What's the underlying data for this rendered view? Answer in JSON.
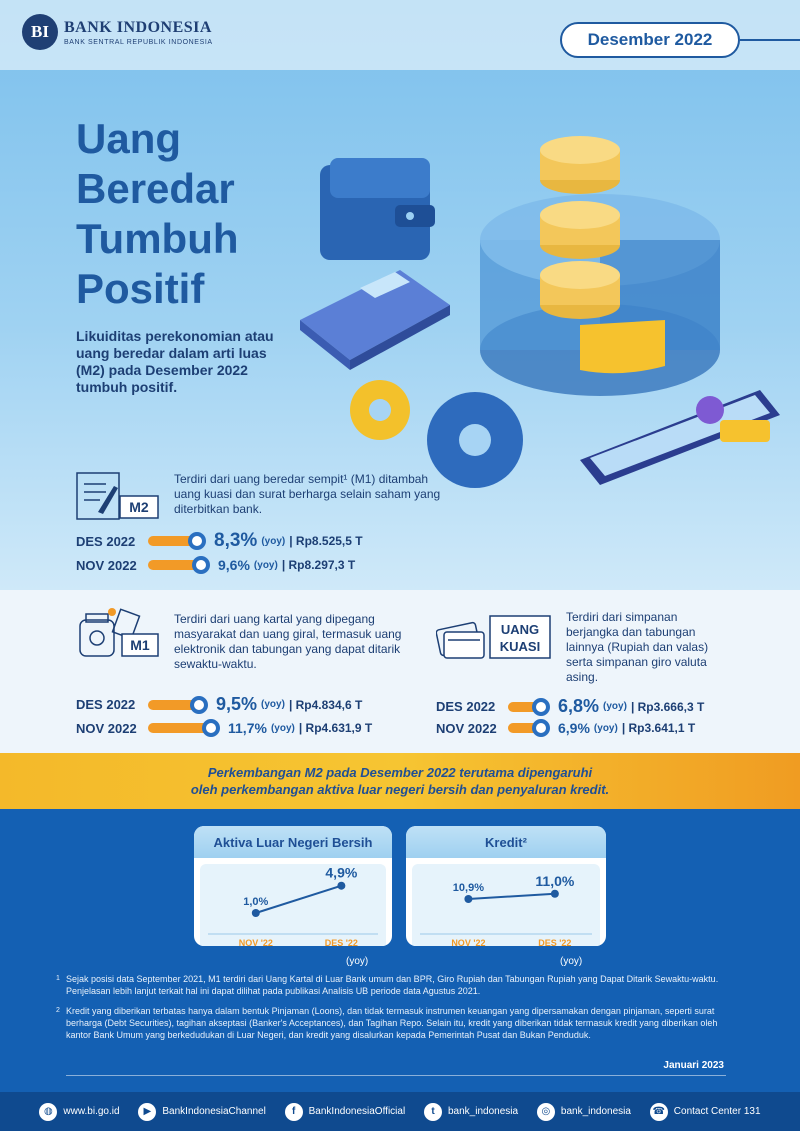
{
  "header": {
    "logo_mark": "BI",
    "logo_name": "BANK INDONESIA",
    "logo_sub": "BANK SENTRAL REPUBLIK INDONESIA",
    "period": "Desember 2022"
  },
  "hero": {
    "title_lines": [
      "Uang",
      "Beredar",
      "Tumbuh",
      "Positif"
    ],
    "intro": "Likuiditas perekonomian atau uang beredar dalam arti luas (M2) pada Desember 2022 tumbuh positif."
  },
  "m2": {
    "badge": "M2",
    "description": "Terdiri dari uang beredar sempit¹ (M1) ditambah uang kuasi dan surat berharga selain saham yang diterbitkan bank.",
    "rows": [
      {
        "label": "DES 2022",
        "pct": "8,3%",
        "yoy": "(yoy)",
        "amount": "| Rp8.525,5 T"
      },
      {
        "label": "NOV 2022",
        "pct": "9,6%",
        "yoy": "(yoy)",
        "amount": "| Rp8.297,3 T"
      }
    ]
  },
  "m1": {
    "badge": "M1",
    "description": "Terdiri dari uang kartal yang dipegang masyarakat dan uang giral, termasuk uang elektronik dan tabungan yang dapat ditarik sewaktu-waktu.",
    "rows": [
      {
        "label": "DES 2022",
        "pct": "9,5%",
        "yoy": "(yoy)",
        "amount": "| Rp4.834,6 T"
      },
      {
        "label": "NOV 2022",
        "pct": "11,7%",
        "yoy": "(yoy)",
        "amount": "| Rp4.631,9 T"
      }
    ]
  },
  "kuasi": {
    "badge_line1": "UANG",
    "badge_line2": "KUASI",
    "description": "Terdiri dari simpanan berjangka dan tabungan lainnya (Rupiah dan valas) serta simpanan giro valuta asing.",
    "rows": [
      {
        "label": "DES 2022",
        "pct": "6,8%",
        "yoy": "(yoy)",
        "amount": "| Rp3.666,3 T"
      },
      {
        "label": "NOV 2022",
        "pct": "6,9%",
        "yoy": "(yoy)",
        "amount": "| Rp3.641,1 T"
      }
    ]
  },
  "banner": {
    "line1": "Perkembangan M2 pada Desember 2022 terutama dipengaruhi",
    "line2": "oleh perkembangan aktiva luar negeri bersih dan penyaluran kredit."
  },
  "chart_data": [
    {
      "type": "line",
      "title": "Aktiva Luar Negeri Bersih",
      "categories": [
        "NOV '22",
        "DES '22"
      ],
      "values": [
        1.0,
        4.9
      ],
      "value_labels": [
        "1,0%",
        "4,9%"
      ],
      "unit": "(yoy)"
    },
    {
      "type": "line",
      "title": "Kredit²",
      "categories": [
        "NOV '22",
        "DES '22"
      ],
      "values": [
        10.9,
        11.0
      ],
      "value_labels": [
        "10,9%",
        "11,0%"
      ],
      "unit": "(yoy)"
    }
  ],
  "notes": [
    {
      "num": "1",
      "text": "Sejak posisi data September 2021, M1 terdiri dari Uang Kartal di Luar Bank umum dan BPR, Giro Rupiah dan Tabungan Rupiah yang Dapat Ditarik Sewaktu-waktu. Penjelasan lebih lanjut terkait hal ini dapat dilihat pada publikasi Analisis UB periode data Agustus 2021."
    },
    {
      "num": "2",
      "text": "Kredit yang diberikan terbatas hanya dalam bentuk Pinjaman (Loons), dan tidak termasuk instrumen keuangan yang dipersamakan dengan pinjaman, seperti surat berharga (Debt Securities), tagihan akseptasi (Banker's Acceptances), dan Tagihan Repo. Selain itu, kredit yang diberikan tidak termasuk kredit yang diberikan oleh kantor Bank Umum yang berkedudukan di Luar Negeri, dan kredit yang disalurkan kepada Pemerintah Pusat dan Bukan Penduduk."
    }
  ],
  "release": "Januari 2023",
  "footer": [
    {
      "icon": "globe-icon",
      "glyph": "◍",
      "label": "www.bi.go.id"
    },
    {
      "icon": "youtube-icon",
      "glyph": "▶",
      "label": "BankIndonesiaChannel"
    },
    {
      "icon": "facebook-icon",
      "glyph": "f",
      "label": "BankIndonesiaOfficial"
    },
    {
      "icon": "twitter-icon",
      "glyph": "t",
      "label": "bank_indonesia"
    },
    {
      "icon": "instagram-icon",
      "glyph": "◎",
      "label": "bank_indonesia"
    },
    {
      "icon": "phone-icon",
      "glyph": "☎",
      "label": "Contact Center 131"
    }
  ],
  "colors": {
    "primary": "#1f5aa0",
    "accent": "#f29a27",
    "banner": "#f4b92a",
    "footer": "#0f4a8f"
  }
}
